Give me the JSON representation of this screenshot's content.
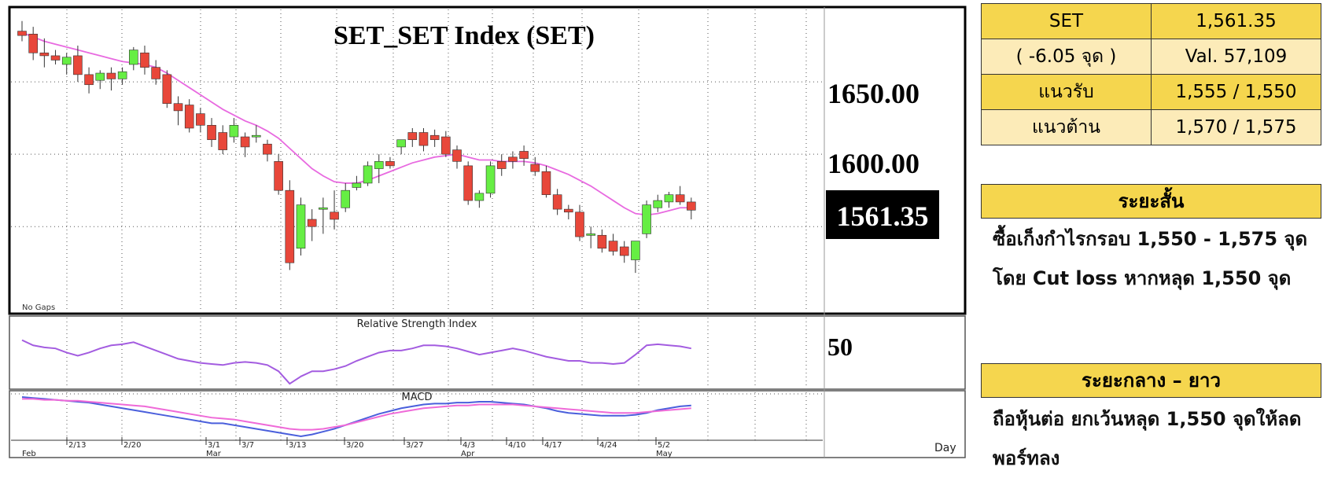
{
  "chart_data": {
    "type": "candlestick",
    "title": "SET_SET Index (SET)",
    "last_price_label": "1561.35",
    "y_ticks": [
      "1650.00",
      "1600.00"
    ],
    "ylim": [
      1492,
      1700
    ],
    "note": "No Gaps",
    "x_day_label": "Day",
    "date_ticks": [
      "2/13",
      "2/20",
      "3/1",
      "3/7",
      "3/13",
      "3/20",
      "3/27",
      "4/3",
      "4/10",
      "4/17",
      "4/24",
      "5/2"
    ],
    "month_labels": [
      "Feb",
      "Mar",
      "Apr",
      "May"
    ],
    "candles": [
      {
        "o": 1685,
        "h": 1692,
        "l": 1678,
        "c": 1682
      },
      {
        "o": 1683,
        "h": 1688,
        "l": 1665,
        "c": 1670
      },
      {
        "o": 1670,
        "h": 1680,
        "l": 1660,
        "c": 1668
      },
      {
        "o": 1668,
        "h": 1672,
        "l": 1662,
        "c": 1665
      },
      {
        "o": 1662,
        "h": 1670,
        "l": 1655,
        "c": 1667
      },
      {
        "o": 1668,
        "h": 1675,
        "l": 1650,
        "c": 1655
      },
      {
        "o": 1655,
        "h": 1660,
        "l": 1642,
        "c": 1648
      },
      {
        "o": 1651,
        "h": 1658,
        "l": 1645,
        "c": 1656
      },
      {
        "o": 1656,
        "h": 1660,
        "l": 1644,
        "c": 1652
      },
      {
        "o": 1652,
        "h": 1660,
        "l": 1648,
        "c": 1657
      },
      {
        "o": 1662,
        "h": 1674,
        "l": 1658,
        "c": 1672
      },
      {
        "o": 1670,
        "h": 1675,
        "l": 1655,
        "c": 1660
      },
      {
        "o": 1660,
        "h": 1665,
        "l": 1648,
        "c": 1652
      },
      {
        "o": 1655,
        "h": 1658,
        "l": 1632,
        "c": 1635
      },
      {
        "o": 1635,
        "h": 1640,
        "l": 1620,
        "c": 1630
      },
      {
        "o": 1634,
        "h": 1638,
        "l": 1615,
        "c": 1618
      },
      {
        "o": 1628,
        "h": 1632,
        "l": 1615,
        "c": 1620
      },
      {
        "o": 1620,
        "h": 1625,
        "l": 1605,
        "c": 1610
      },
      {
        "o": 1615,
        "h": 1620,
        "l": 1600,
        "c": 1603
      },
      {
        "o": 1612,
        "h": 1625,
        "l": 1608,
        "c": 1620
      },
      {
        "o": 1612,
        "h": 1615,
        "l": 1598,
        "c": 1605
      },
      {
        "o": 1612,
        "h": 1620,
        "l": 1608,
        "c": 1613
      },
      {
        "o": 1607,
        "h": 1610,
        "l": 1595,
        "c": 1600
      },
      {
        "o": 1595,
        "h": 1600,
        "l": 1572,
        "c": 1575
      },
      {
        "o": 1575,
        "h": 1582,
        "l": 1520,
        "c": 1525
      },
      {
        "o": 1535,
        "h": 1570,
        "l": 1530,
        "c": 1565
      },
      {
        "o": 1555,
        "h": 1562,
        "l": 1540,
        "c": 1550
      },
      {
        "o": 1563,
        "h": 1570,
        "l": 1545,
        "c": 1563
      },
      {
        "o": 1560,
        "h": 1575,
        "l": 1548,
        "c": 1555
      },
      {
        "o": 1563,
        "h": 1580,
        "l": 1560,
        "c": 1575
      },
      {
        "o": 1577,
        "h": 1585,
        "l": 1575,
        "c": 1580
      },
      {
        "o": 1580,
        "h": 1595,
        "l": 1578,
        "c": 1592
      },
      {
        "o": 1590,
        "h": 1600,
        "l": 1580,
        "c": 1595
      },
      {
        "o": 1595,
        "h": 1598,
        "l": 1590,
        "c": 1592
      },
      {
        "o": 1605,
        "h": 1610,
        "l": 1600,
        "c": 1610
      },
      {
        "o": 1615,
        "h": 1618,
        "l": 1605,
        "c": 1610
      },
      {
        "o": 1615,
        "h": 1618,
        "l": 1602,
        "c": 1606
      },
      {
        "o": 1613,
        "h": 1617,
        "l": 1605,
        "c": 1610
      },
      {
        "o": 1612,
        "h": 1616,
        "l": 1598,
        "c": 1600
      },
      {
        "o": 1603,
        "h": 1606,
        "l": 1590,
        "c": 1595
      },
      {
        "o": 1592,
        "h": 1595,
        "l": 1565,
        "c": 1568
      },
      {
        "o": 1568,
        "h": 1575,
        "l": 1563,
        "c": 1573
      },
      {
        "o": 1573,
        "h": 1595,
        "l": 1570,
        "c": 1592
      },
      {
        "o": 1595,
        "h": 1600,
        "l": 1585,
        "c": 1590
      },
      {
        "o": 1598,
        "h": 1602,
        "l": 1590,
        "c": 1595
      },
      {
        "o": 1602,
        "h": 1606,
        "l": 1592,
        "c": 1597
      },
      {
        "o": 1593,
        "h": 1598,
        "l": 1585,
        "c": 1588
      },
      {
        "o": 1588,
        "h": 1592,
        "l": 1570,
        "c": 1572
      },
      {
        "o": 1572,
        "h": 1576,
        "l": 1558,
        "c": 1562
      },
      {
        "o": 1562,
        "h": 1565,
        "l": 1555,
        "c": 1560
      },
      {
        "o": 1560,
        "h": 1565,
        "l": 1540,
        "c": 1543
      },
      {
        "o": 1545,
        "h": 1550,
        "l": 1535,
        "c": 1545
      },
      {
        "o": 1544,
        "h": 1548,
        "l": 1532,
        "c": 1535
      },
      {
        "o": 1540,
        "h": 1545,
        "l": 1530,
        "c": 1533
      },
      {
        "o": 1536,
        "h": 1540,
        "l": 1525,
        "c": 1530
      },
      {
        "o": 1527,
        "h": 1540,
        "l": 1518,
        "c": 1540
      },
      {
        "o": 1545,
        "h": 1568,
        "l": 1542,
        "c": 1565
      },
      {
        "o": 1563,
        "h": 1572,
        "l": 1560,
        "c": 1568
      },
      {
        "o": 1567,
        "h": 1574,
        "l": 1563,
        "c": 1572
      },
      {
        "o": 1572,
        "h": 1578,
        "l": 1565,
        "c": 1567
      },
      {
        "o": 1567,
        "h": 1570,
        "l": 1555,
        "c": 1561.35
      }
    ],
    "series": [
      {
        "kind": "ma",
        "values": [
          1684,
          1681,
          1678,
          1676,
          1674,
          1672,
          1670,
          1668,
          1666,
          1664,
          1663,
          1662,
          1660,
          1656,
          1651,
          1646,
          1641,
          1636,
          1631,
          1627,
          1623,
          1620,
          1616,
          1611,
          1604,
          1597,
          1590,
          1585,
          1581,
          1580,
          1580,
          1582,
          1585,
          1588,
          1591,
          1594,
          1596,
          1598,
          1599,
          1600,
          1598,
          1596,
          1596,
          1595,
          1595,
          1595,
          1594,
          1592,
          1589,
          1586,
          1582,
          1578,
          1573,
          1568,
          1563,
          1559,
          1558,
          1559,
          1561,
          1563,
          1563
        ]
      },
      {
        "kind": "rsi",
        "name": "Relative Strength Index",
        "label": "50",
        "values": [
          60,
          55,
          53,
          52,
          48,
          45,
          48,
          52,
          55,
          56,
          58,
          54,
          50,
          46,
          42,
          40,
          38,
          37,
          36,
          38,
          39,
          38,
          36,
          30,
          18,
          25,
          30,
          30,
          32,
          35,
          40,
          44,
          48,
          50,
          50,
          52,
          55,
          55,
          54,
          52,
          49,
          46,
          48,
          50,
          52,
          50,
          47,
          44,
          42,
          40,
          40,
          38,
          38,
          37,
          38,
          46,
          55,
          56,
          55,
          54,
          52
        ]
      },
      {
        "kind": "macd",
        "name": "MACD",
        "line_a": [
          10,
          9,
          8,
          7,
          6,
          5,
          4,
          2,
          0,
          -2,
          -4,
          -6,
          -8,
          -10,
          -12,
          -14,
          -16,
          -18,
          -18,
          -20,
          -22,
          -24,
          -26,
          -28,
          -30,
          -32,
          -30,
          -27,
          -24,
          -20,
          -16,
          -12,
          -8,
          -5,
          -2,
          0,
          2,
          3,
          3,
          4,
          4,
          5,
          5,
          4,
          3,
          2,
          0,
          -2,
          -5,
          -7,
          -8,
          -9,
          -10,
          -10,
          -10,
          -9,
          -7,
          -4,
          -2,
          0,
          1
        ],
        "line_b": [
          8,
          8,
          7,
          7,
          6,
          6,
          5,
          4,
          3,
          2,
          1,
          0,
          -2,
          -4,
          -6,
          -8,
          -10,
          -12,
          -13,
          -14,
          -16,
          -18,
          -20,
          -22,
          -24,
          -25,
          -25,
          -24,
          -22,
          -20,
          -17,
          -14,
          -11,
          -8,
          -6,
          -4,
          -2,
          -1,
          0,
          1,
          1,
          2,
          2,
          2,
          2,
          1,
          0,
          -1,
          -2,
          -3,
          -4,
          -5,
          -6,
          -7,
          -7,
          -7,
          -6,
          -5,
          -4,
          -3,
          -2
        ]
      }
    ]
  },
  "info_table": {
    "rows": [
      [
        "SET",
        "1,561.35"
      ],
      [
        "( -6.05 จุด )",
        "Val. 57,109"
      ],
      [
        "แนวรับ",
        "1,555 / 1,550"
      ],
      [
        "แนวต้าน",
        "1,570 / 1,575"
      ]
    ]
  },
  "short_term": {
    "title": "ระยะสั้น",
    "line1": "ซื้อเก็งกำไรกรอบ 1,550 - 1,575 จุด",
    "line2": "โดย Cut loss หากหลุด 1,550 จุด"
  },
  "long_term": {
    "title": "ระยะกลาง – ยาว",
    "line1": "ถือหุ้นต่อ ยกเว้นหลุด 1,550 จุดให้ลด",
    "line2": "พอร์ทลง"
  }
}
